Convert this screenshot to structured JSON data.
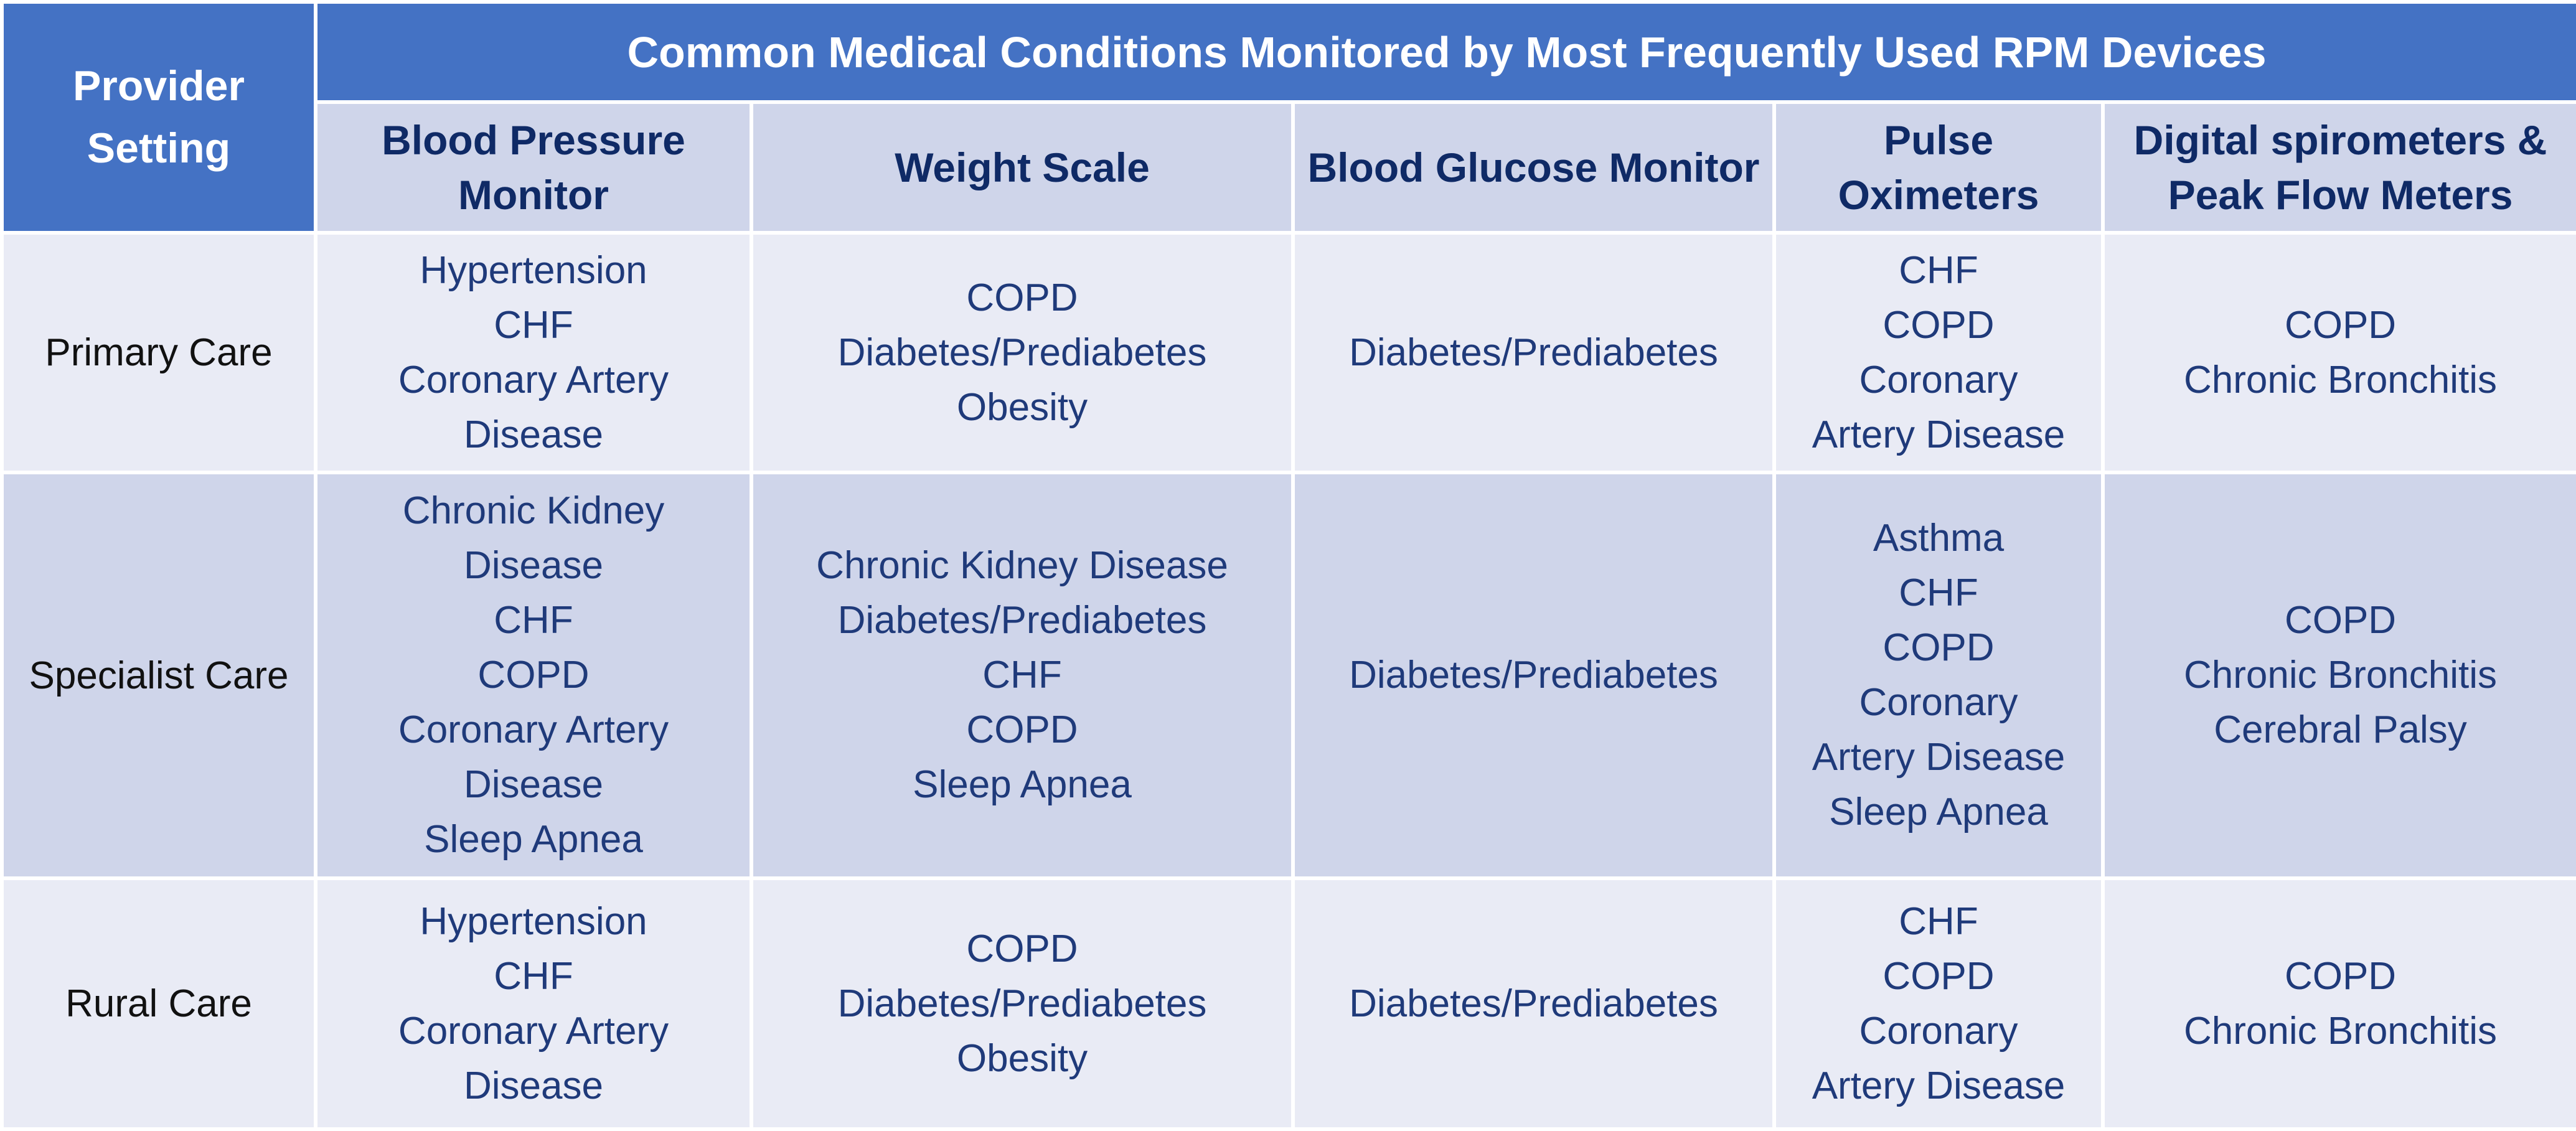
{
  "header": {
    "provider_setting": [
      "Provider",
      "Setting"
    ],
    "title": "Common Medical Conditions Monitored by Most Frequently Used RPM Devices"
  },
  "devices": [
    {
      "lines": [
        "Blood Pressure",
        "Monitor"
      ]
    },
    {
      "lines": [
        "Weight Scale"
      ]
    },
    {
      "lines": [
        "Blood Glucose Monitor"
      ]
    },
    {
      "lines": [
        "Pulse",
        "Oximeters"
      ]
    },
    {
      "lines": [
        "Digital spirometers &",
        "Peak Flow Meters"
      ]
    }
  ],
  "rows": [
    {
      "setting": "Primary Care",
      "cells": [
        [
          "Hypertension",
          "CHF",
          "Coronary Artery",
          "Disease"
        ],
        [
          "COPD",
          "Diabetes/Prediabetes",
          "Obesity"
        ],
        [
          "Diabetes/Prediabetes"
        ],
        [
          "CHF",
          "COPD",
          "Coronary",
          "Artery Disease"
        ],
        [
          "COPD",
          "Chronic Bronchitis"
        ]
      ]
    },
    {
      "setting": "Specialist Care",
      "cells": [
        [
          "Chronic Kidney",
          "Disease",
          "CHF",
          "COPD",
          "Coronary Artery",
          "Disease",
          "Sleep Apnea"
        ],
        [
          "Chronic Kidney Disease",
          "Diabetes/Prediabetes",
          "CHF",
          "COPD",
          "Sleep Apnea"
        ],
        [
          "Diabetes/Prediabetes"
        ],
        [
          "Asthma",
          "CHF",
          "COPD",
          "Coronary",
          "Artery Disease",
          "Sleep Apnea"
        ],
        [
          "COPD",
          "Chronic Bronchitis",
          "Cerebral Palsy"
        ]
      ]
    },
    {
      "setting": "Rural Care",
      "cells": [
        [
          "Hypertension",
          "CHF",
          "Coronary Artery",
          "Disease"
        ],
        [
          "COPD",
          "Diabetes/Prediabetes",
          "Obesity"
        ],
        [
          "Diabetes/Prediabetes"
        ],
        [
          "CHF",
          "COPD",
          "Coronary",
          "Artery Disease"
        ],
        [
          "COPD",
          "Chronic Bronchitis"
        ]
      ]
    }
  ],
  "colors": {
    "header_blue": "#4472C4",
    "subheader": "#CFD5EA",
    "row_light": "#E9EBF5",
    "row_dark": "#CFD5EA",
    "text_navy": "#1F3A7A"
  }
}
